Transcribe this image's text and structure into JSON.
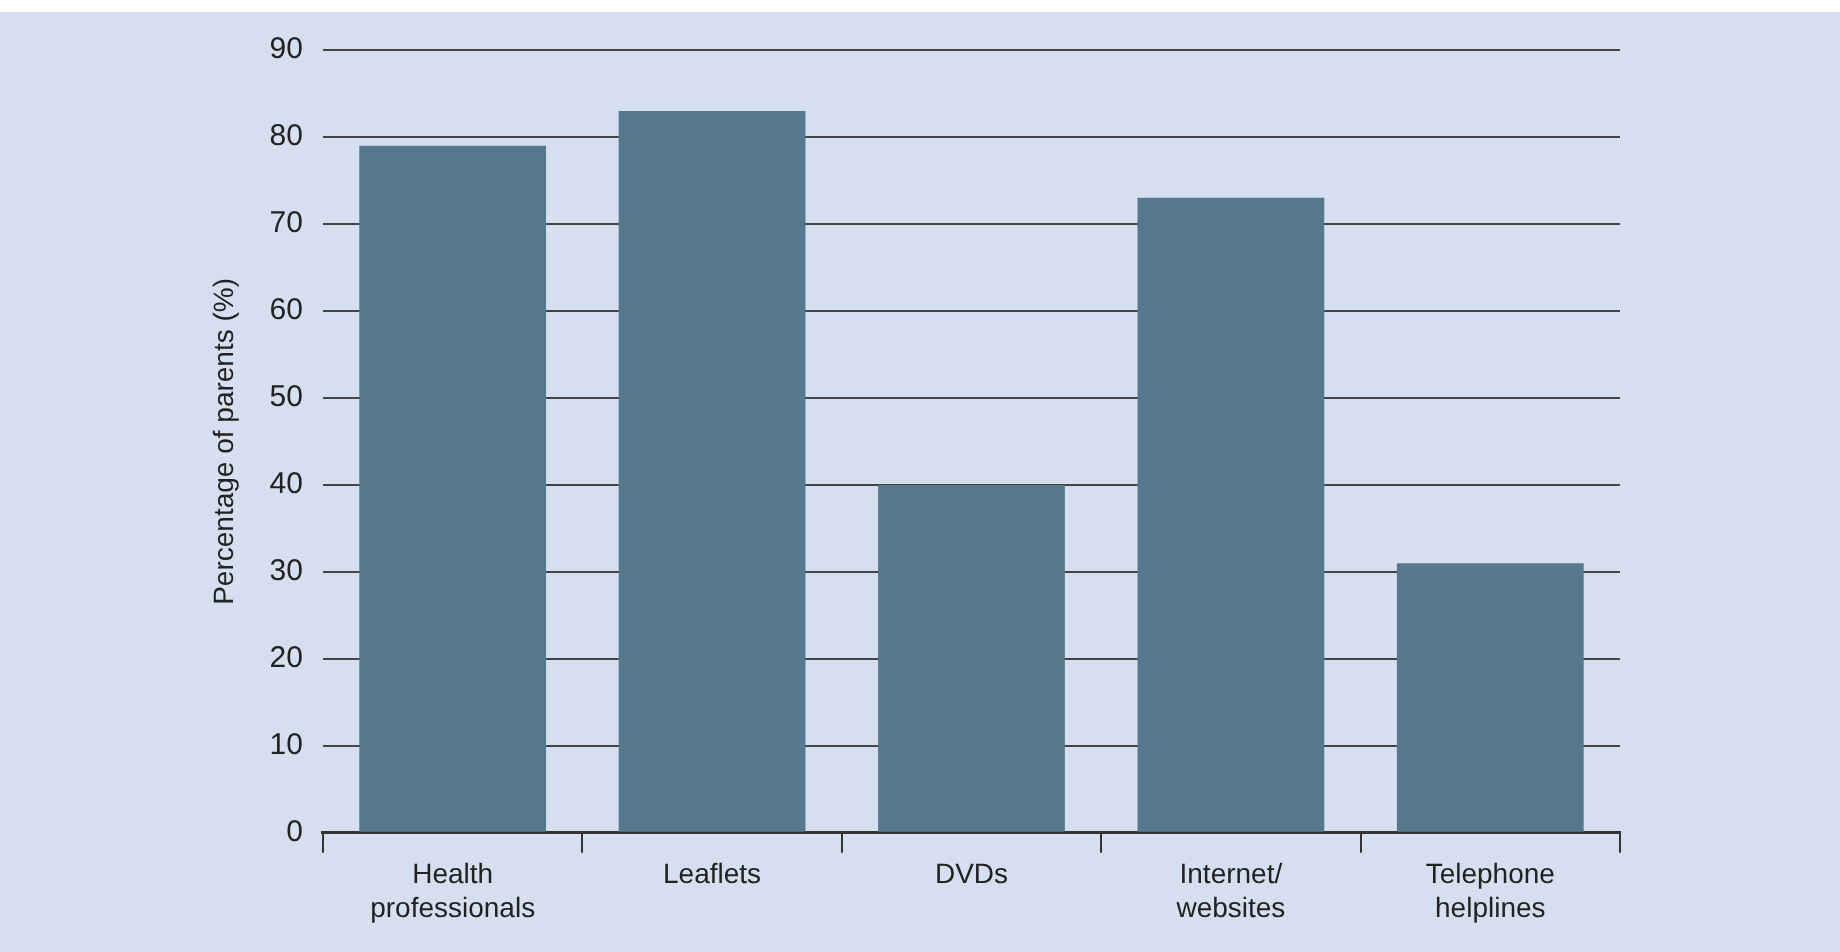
{
  "chart_data": {
    "type": "bar",
    "ylabel": "Percentage of parents (%)",
    "categories": [
      "Health professionals",
      "Leaflets",
      "DVDs",
      "Internet/websites",
      "Telephone helplines"
    ],
    "values": [
      79,
      83,
      40,
      73,
      31
    ],
    "color": "#55788f",
    "ylim": [
      0,
      90
    ],
    "yticks": [
      0,
      10,
      20,
      30,
      40,
      50,
      60,
      70,
      80,
      90
    ],
    "grid": "y",
    "legend": false
  }
}
